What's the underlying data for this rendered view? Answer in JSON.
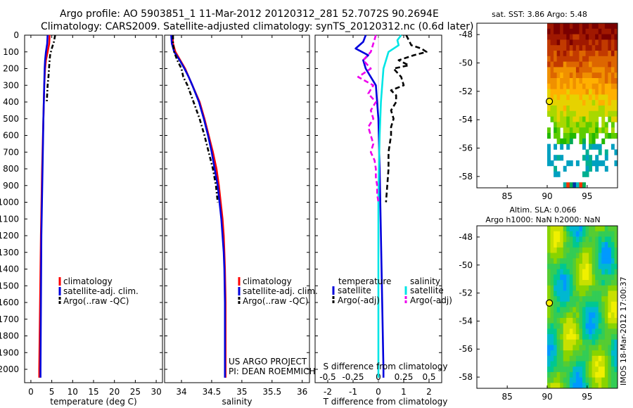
{
  "header": {
    "line1": "Argo profile: AO 5903851_1 11-Mar-2012 20120312_281 52.7072S 90.2694E",
    "line2": "Climatology: CARS2009. Satellite-adjusted climatology: synTS_20120312.nc (0.6d later)"
  },
  "legends": {
    "profile": [
      "climatology",
      "satellite-adj. clim.",
      "Argo(..raw -QC)"
    ],
    "diff_temperature_title": "temperature",
    "diff_salinity_title": "salinity",
    "diff_temperature": [
      "satellite",
      "Argo(-adj)"
    ],
    "diff_salinity": [
      "satellite",
      "Argo(-adj)"
    ]
  },
  "credits": {
    "line1": "US ARGO PROJECT",
    "line2": "PI: DEAN ROEMMICH"
  },
  "stamp": "IMOS 18-Mar-2012 17:00:37",
  "colors": {
    "climatology": "#ff0000",
    "satellite": "#0000dd",
    "argo": "#000000",
    "sal_satellite": "#00e5e5",
    "sal_argo": "#ee00ee"
  },
  "chart_data": [
    {
      "type": "line",
      "name": "temperature-profile",
      "xlabel": "temperature (deg C)",
      "xlim": [
        -1.5,
        31.5
      ],
      "xticks": [
        0,
        5,
        10,
        15,
        20,
        25,
        30
      ],
      "ylim": [
        2080,
        0
      ],
      "yticks": [
        0,
        100,
        200,
        300,
        400,
        500,
        600,
        700,
        800,
        900,
        1000,
        1100,
        1200,
        1300,
        1400,
        1500,
        1600,
        1700,
        1800,
        1900,
        2000
      ],
      "series": [
        {
          "name": "climatology",
          "color": "#ff0000",
          "dash": "",
          "depth": [
            0,
            50,
            100,
            150,
            200,
            300,
            500,
            800,
            1200,
            1600,
            2000,
            2050
          ],
          "values": [
            4.5,
            4.4,
            4.0,
            3.6,
            3.4,
            3.2,
            3.0,
            2.7,
            2.4,
            2.2,
            2.0,
            2.0
          ]
        },
        {
          "name": "satellite-adj. clim.",
          "color": "#0000dd",
          "dash": "",
          "depth": [
            0,
            50,
            100,
            150,
            200,
            300,
            500,
            800,
            1200,
            1600,
            2000,
            2050
          ],
          "values": [
            4.0,
            3.9,
            3.6,
            3.4,
            3.3,
            3.2,
            3.0,
            2.8,
            2.5,
            2.4,
            2.3,
            2.3
          ]
        },
        {
          "name": "Argo(..raw -QC)",
          "color": "#000000",
          "dash": "6,3,2,3",
          "depth": [
            0,
            40,
            80,
            120,
            180,
            250,
            300,
            400
          ],
          "values": [
            5.8,
            5.5,
            5.0,
            4.6,
            4.4,
            4.2,
            4.0,
            3.8
          ]
        }
      ]
    },
    {
      "type": "line",
      "name": "salinity-profile",
      "xlabel": "salinity",
      "xlim": [
        33.72,
        36.12
      ],
      "xticks": [
        34,
        34.5,
        35,
        35.5,
        36
      ],
      "ylim": [
        2080,
        0
      ],
      "series": [
        {
          "name": "climatology",
          "color": "#ff0000",
          "dash": "",
          "depth": [
            0,
            50,
            100,
            150,
            200,
            250,
            300,
            400,
            500,
            600,
            700,
            800,
            900,
            1000,
            1100,
            1200,
            1300,
            1400,
            1600,
            1800,
            2000,
            2050
          ],
          "values": [
            33.85,
            33.86,
            33.9,
            33.98,
            34.06,
            34.12,
            34.18,
            34.3,
            34.38,
            34.45,
            34.52,
            34.58,
            34.62,
            34.65,
            34.68,
            34.7,
            34.71,
            34.72,
            34.73,
            34.73,
            34.73,
            34.73
          ]
        },
        {
          "name": "satellite-adj. clim.",
          "color": "#0000dd",
          "dash": "",
          "depth": [
            0,
            50,
            100,
            150,
            200,
            250,
            300,
            400,
            500,
            600,
            700,
            800,
            900,
            1000,
            1100,
            1200,
            1300,
            1400,
            1600,
            1800,
            2000,
            2050
          ],
          "values": [
            33.83,
            33.84,
            33.88,
            33.97,
            34.05,
            34.12,
            34.18,
            34.29,
            34.37,
            34.44,
            34.5,
            34.55,
            34.6,
            34.63,
            34.66,
            34.68,
            34.7,
            34.71,
            34.72,
            34.72,
            34.72,
            34.72
          ]
        },
        {
          "name": "Argo(..raw -QC)",
          "color": "#000000",
          "dash": "6,3,2,3",
          "depth": [
            0,
            50,
            100,
            150,
            200,
            250,
            300,
            400,
            500,
            600,
            700,
            800,
            900,
            1000
          ],
          "values": [
            33.86,
            33.86,
            33.88,
            33.93,
            34.0,
            34.03,
            34.1,
            34.2,
            34.3,
            34.38,
            34.45,
            34.52,
            34.57,
            34.6
          ]
        }
      ]
    },
    {
      "type": "line",
      "name": "difference-from-climatology",
      "xlabel": "T difference from climatology",
      "xlabel_top": "S difference from climatology",
      "xlim": [
        -2.5,
        2.5
      ],
      "xticks": [
        -2,
        -1,
        0,
        1,
        2
      ],
      "xticks_top": [
        "-0.5",
        "-0.25",
        "0",
        "0.25",
        "0.5"
      ],
      "ylim": [
        2080,
        0
      ],
      "series": [
        {
          "name": "temperature satellite",
          "color": "#0000dd",
          "dash": "",
          "depth": [
            0,
            40,
            80,
            120,
            150,
            200,
            250,
            300,
            500,
            800,
            1200,
            1600,
            2000,
            2050
          ],
          "values": [
            -0.5,
            -0.6,
            -0.9,
            -0.4,
            -0.6,
            -0.5,
            -0.3,
            -0.1,
            0.0,
            0.05,
            0.1,
            0.15,
            0.2,
            0.2
          ]
        },
        {
          "name": "temperature Argo(-adj)",
          "color": "#000000",
          "dash": "7,4",
          "depth": [
            0,
            30,
            60,
            80,
            100,
            120,
            150,
            180,
            200,
            250,
            300,
            330,
            360,
            400,
            450,
            500,
            550,
            600,
            700,
            800,
            900,
            1000
          ],
          "values": [
            1.1,
            1.2,
            1.3,
            1.7,
            1.9,
            1.4,
            0.8,
            1.2,
            0.6,
            0.9,
            1.0,
            0.5,
            0.7,
            0.7,
            0.5,
            0.6,
            0.5,
            0.5,
            0.4,
            0.4,
            0.35,
            0.3
          ]
        },
        {
          "name": "salinity satellite",
          "color": "#00e5e5",
          "dash": "",
          "depth": [
            0,
            30,
            60,
            100,
            150,
            200,
            300,
            400,
            600,
            800,
            1000,
            1300,
            1600,
            2000,
            2050
          ],
          "values": [
            0.9,
            0.75,
            0.8,
            0.4,
            0.3,
            0.2,
            0.15,
            0.1,
            0.05,
            0.02,
            0.0,
            0.0,
            0.0,
            0.0,
            0.0
          ]
        },
        {
          "name": "salinity Argo(-adj)",
          "color": "#ee00ee",
          "dash": "7,4",
          "depth": [
            0,
            50,
            100,
            150,
            200,
            250,
            300,
            350,
            400,
            450,
            500,
            550,
            600,
            650,
            700,
            750,
            800,
            850,
            900,
            950,
            1000
          ],
          "values": [
            -0.1,
            -0.2,
            -0.3,
            -0.6,
            -0.3,
            -0.8,
            -0.2,
            -0.4,
            -0.1,
            -0.3,
            -0.2,
            -0.4,
            -0.3,
            -0.2,
            -0.3,
            -0.15,
            -0.1,
            -0.1,
            -0.05,
            -0.05,
            0.0
          ]
        }
      ]
    },
    {
      "type": "heatmap",
      "name": "sst-map",
      "title": "sat. SST: 3.86 Argo: 5.48",
      "xlim": [
        81.2,
        98.8
      ],
      "ylim": [
        -58.8,
        -47.2
      ],
      "xticks": [
        85,
        90,
        95
      ],
      "yticks": [
        -48,
        -50,
        -52,
        -54,
        -56,
        -58
      ],
      "data_lon_range": [
        90,
        98.8
      ],
      "float_lon": 90.27,
      "float_lat": -52.71
    },
    {
      "type": "heatmap",
      "name": "sla-map",
      "title_line1": "Altim. SLA: 0.066",
      "title_line2": "Argo h1000: NaN h2000: NaN",
      "xlim": [
        81.2,
        98.8
      ],
      "ylim": [
        -58.8,
        -47.2
      ],
      "xticks": [
        85,
        90,
        95
      ],
      "yticks": [
        -48,
        -50,
        -52,
        -54,
        -56,
        -58
      ],
      "data_lon_range": [
        90,
        98.8
      ],
      "float_lon": 90.27,
      "float_lat": -52.71
    }
  ]
}
